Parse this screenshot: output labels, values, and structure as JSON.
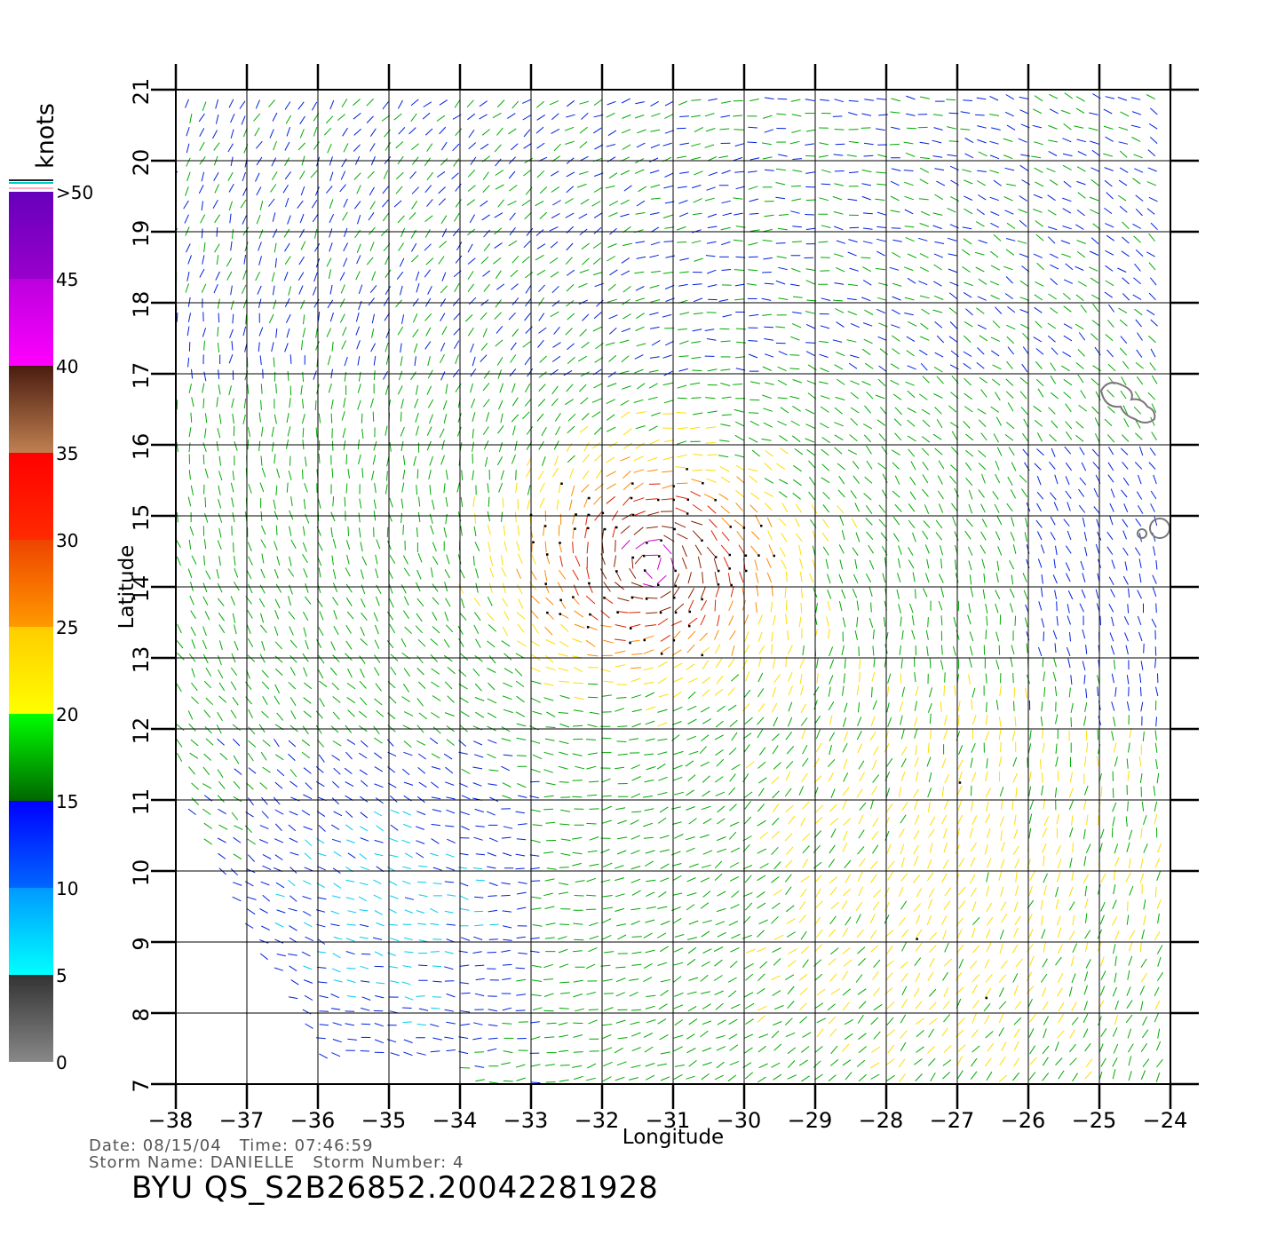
{
  "chart_data": {
    "type": "wind-vector-map",
    "xlabel": "Longitude",
    "ylabel": "Latitude",
    "xlim": [
      -38,
      -24
    ],
    "ylim": [
      7,
      21
    ],
    "x_ticks": [
      "−38",
      "−37",
      "−36",
      "−35",
      "−34",
      "−33",
      "−32",
      "−31",
      "−30",
      "−29",
      "−28",
      "−27",
      "−26",
      "−25",
      "−24"
    ],
    "y_ticks": [
      "7",
      "8",
      "9",
      "10",
      "11",
      "12",
      "13",
      "14",
      "15",
      "16",
      "17",
      "18",
      "19",
      "20",
      "21"
    ],
    "grid": true,
    "storm_center": {
      "lon": -31.3,
      "lat": 14.3
    },
    "colorbar": {
      "unit": "knots",
      "labels": [
        "0",
        "5",
        "10",
        "15",
        "20",
        "25",
        "30",
        "35",
        "40",
        "45",
        ">50"
      ],
      "bands": [
        {
          "range": [
            0,
            5
          ],
          "top": "#333333",
          "bottom": "#888888"
        },
        {
          "range": [
            5,
            10
          ],
          "top": "#0099ff",
          "bottom": "#00ffff"
        },
        {
          "range": [
            10,
            15
          ],
          "top": "#0000ff",
          "bottom": "#0066ff"
        },
        {
          "range": [
            15,
            20
          ],
          "top": "#00ff00",
          "bottom": "#006600"
        },
        {
          "range": [
            20,
            25
          ],
          "top": "#ffcc00",
          "bottom": "#ffff00"
        },
        {
          "range": [
            25,
            30
          ],
          "top": "#ee4400",
          "bottom": "#ff9900"
        },
        {
          "range": [
            30,
            35
          ],
          "top": "#ff0000",
          "bottom": "#ff2a00"
        },
        {
          "range": [
            35,
            40
          ],
          "top": "#4a1c10",
          "bottom": "#c08050"
        },
        {
          "range": [
            40,
            45
          ],
          "top": "#bb00dd",
          "bottom": "#ff00ff"
        },
        {
          "range": [
            45,
            50
          ],
          "top": "#6600bb",
          "bottom": "#9900cc"
        }
      ]
    },
    "islands": [
      {
        "name": "Cape Verde north",
        "lon": -24.6,
        "lat": 16.7
      },
      {
        "name": "Cape Verde south",
        "lon": -24.4,
        "lat": 14.9
      }
    ]
  },
  "footer": {
    "date_line": "Date: 08/15/04   Time: 07:46:59",
    "storm_line": "Storm Name: DANIELLE   Storm Number: 4",
    "run_id": "BYU QS_S2B26852.20042281928"
  }
}
